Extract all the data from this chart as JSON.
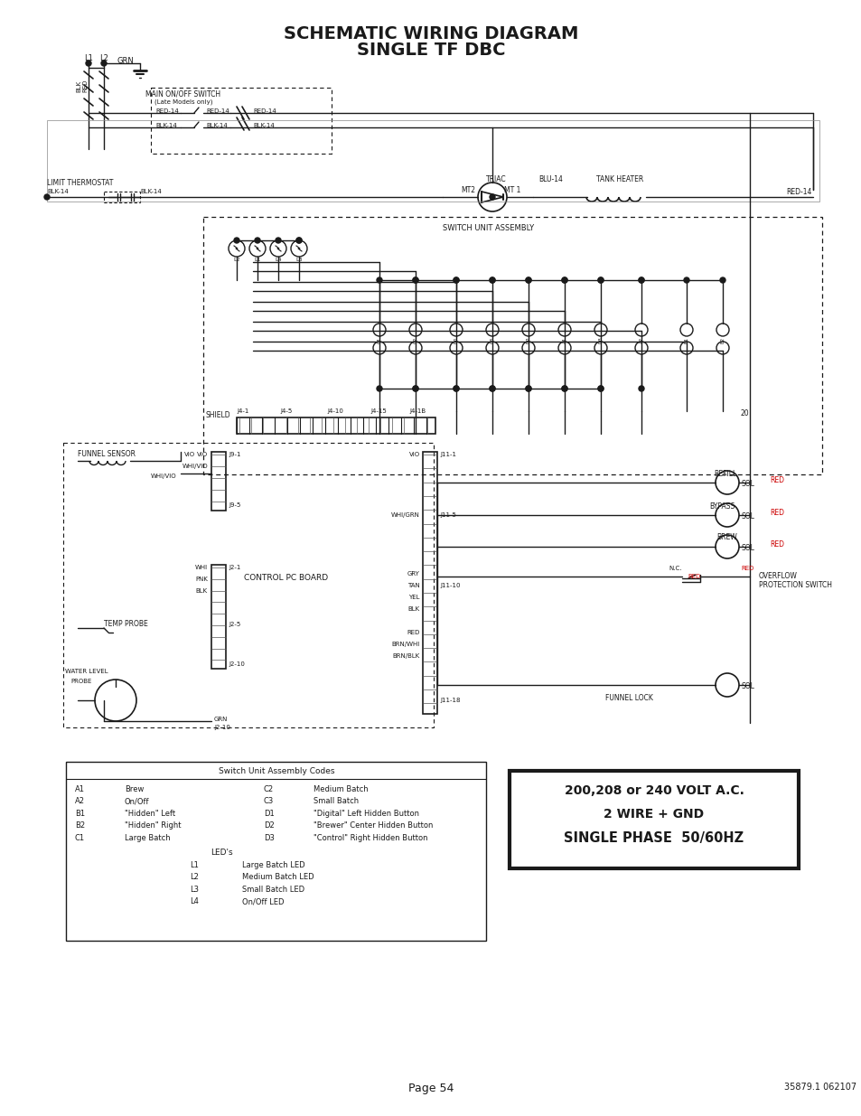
{
  "title_line1": "SCHEMATIC WIRING DIAGRAM",
  "title_line2": "SINGLE TF DBC",
  "page_text": "Page 54",
  "doc_number": "35879.1 062107",
  "bg_color": "#ffffff",
  "text_color": "#1a1a1a",
  "switch_assembly_codes": {
    "title": "Switch Unit Assembly Codes",
    "items": [
      [
        "A1",
        "Brew",
        "C2",
        "Medium Batch"
      ],
      [
        "A2",
        "On/Off",
        "C3",
        "Small Batch"
      ],
      [
        "B1",
        "\"Hidden\" Left",
        "D1",
        "\"Digital\" Left Hidden Button"
      ],
      [
        "B2",
        "\"Hidden\" Right",
        "D2",
        "\"Brewer\" Center Hidden Button"
      ],
      [
        "C1",
        "Large Batch",
        "D3",
        "\"Control\" Right Hidden Button"
      ]
    ],
    "leds_title": "LED's",
    "leds": [
      [
        "L1",
        "Large Batch LED"
      ],
      [
        "L2",
        "Medium Batch LED"
      ],
      [
        "L3",
        "Small Batch LED"
      ],
      [
        "L4",
        "On/Off LED"
      ]
    ]
  },
  "voltage_box": {
    "line1": "200,208 or 240 VOLT A.C.",
    "line2": "2 WIRE + GND",
    "line3": "SINGLE PHASE  50/60HZ"
  }
}
